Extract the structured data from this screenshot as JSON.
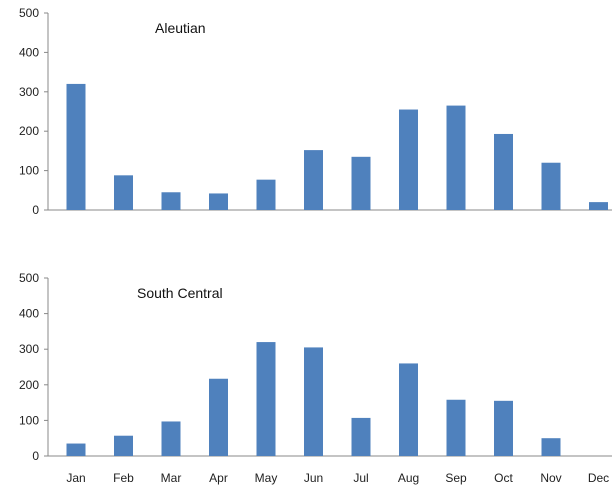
{
  "chart_data": [
    {
      "type": "bar",
      "title": "Aleutian",
      "categories": [
        "Jan",
        "Feb",
        "Mar",
        "Apr",
        "May",
        "Jun",
        "Jul",
        "Aug",
        "Sep",
        "Oct",
        "Nov",
        "Dec"
      ],
      "values": [
        320,
        88,
        45,
        42,
        77,
        152,
        135,
        255,
        265,
        193,
        120,
        20
      ],
      "ylim": [
        0,
        500
      ],
      "yticks": [
        0,
        100,
        200,
        300,
        400,
        500
      ],
      "show_xticklabels": false,
      "grid": false,
      "color": "#4F81BD"
    },
    {
      "type": "bar",
      "title": "South Central",
      "categories": [
        "Jan",
        "Feb",
        "Mar",
        "Apr",
        "May",
        "Jun",
        "Jul",
        "Aug",
        "Sep",
        "Oct",
        "Nov",
        "Dec"
      ],
      "values": [
        35,
        57,
        97,
        217,
        320,
        305,
        107,
        260,
        158,
        155,
        50,
        0
      ],
      "ylim": [
        0,
        500
      ],
      "yticks": [
        0,
        100,
        200,
        300,
        400,
        500
      ],
      "show_xticklabels": true,
      "grid": false,
      "color": "#4F81BD"
    }
  ]
}
